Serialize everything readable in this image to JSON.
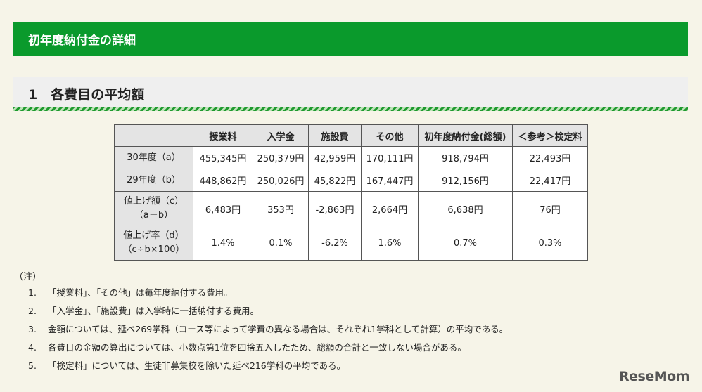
{
  "banner": {
    "title": "初年度納付金の詳細"
  },
  "section": {
    "title": "1　各費目の平均額"
  },
  "table": {
    "headers": [
      "",
      "授業料",
      "入学金",
      "施設費",
      "その他",
      "初年度納付金(総額)",
      "＜参考＞検定料"
    ],
    "rows": [
      {
        "label": [
          "30年度（a）"
        ],
        "cells": [
          "455,345円",
          "250,379円",
          "42,959円",
          "170,111円",
          "918,794円",
          "22,493円"
        ]
      },
      {
        "label": [
          "29年度（b）"
        ],
        "cells": [
          "448,862円",
          "250,026円",
          "45,822円",
          "167,447円",
          "912,156円",
          "22,417円"
        ]
      },
      {
        "label": [
          "値上げ額（c）",
          "（a－b）"
        ],
        "cells": [
          "6,483円",
          "353円",
          "-2,863円",
          "2,664円",
          "6,638円",
          "76円"
        ]
      },
      {
        "label": [
          "値上げ率（d）",
          "（c÷b×100）"
        ],
        "cells": [
          "1.4%",
          "0.1%",
          "-6.2%",
          "1.6%",
          "0.7%",
          "0.3%"
        ]
      }
    ]
  },
  "notes": {
    "label": "（注）",
    "items": [
      {
        "num": "1.",
        "text": "「授業料」、「その他」は毎年度納付する費用。"
      },
      {
        "num": "2.",
        "text": "「入学金」、「施設費」は入学時に一括納付する費用。"
      },
      {
        "num": "3.",
        "text": "金額については、延べ269学科（コース等によって学費の異なる場合は、それぞれ1学科として計算）の平均である。"
      },
      {
        "num": "4.",
        "text": "各費目の金額の算出については、小数点第1位を四捨五入したため、総額の合計と一致しない場合がある。"
      },
      {
        "num": "5.",
        "text": "「検定料」については、生徒非募集校を除いた延べ216学科の平均である。"
      }
    ]
  },
  "logo": {
    "text": "ReseMom"
  }
}
